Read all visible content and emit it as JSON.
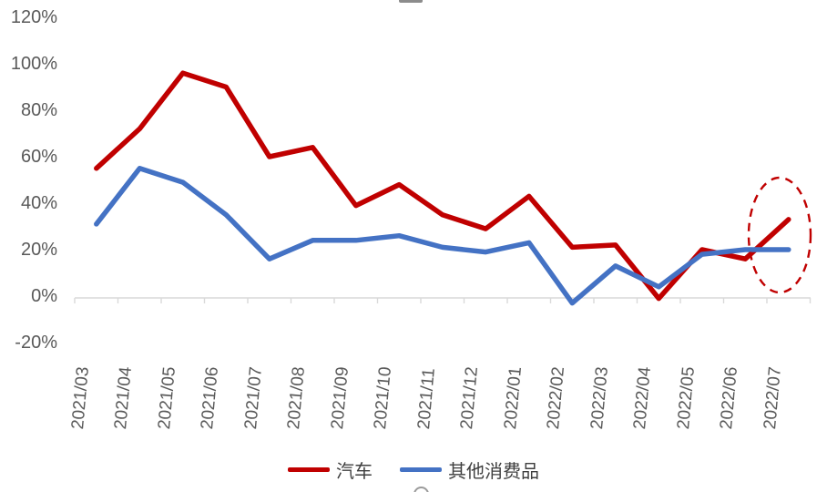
{
  "chart_data": {
    "type": "line",
    "categories": [
      "2021/03",
      "2021/04",
      "2021/05",
      "2021/06",
      "2021/07",
      "2021/08",
      "2021/09",
      "2021/10",
      "2021/11",
      "2021/12",
      "2022/01",
      "2022/02",
      "2022/03",
      "2022/04",
      "2022/05",
      "2022/06",
      "2022/07"
    ],
    "series": [
      {
        "name": "汽车",
        "color": "#C00000",
        "values": [
          55,
          72,
          96,
          90,
          60,
          64,
          39,
          48,
          35,
          29,
          43,
          21,
          22,
          -1,
          20,
          16,
          33
        ]
      },
      {
        "name": "其他消费品",
        "color": "#4472C4",
        "values": [
          31,
          55,
          49,
          35,
          16,
          24,
          24,
          26,
          21,
          19,
          23,
          -3,
          13,
          4,
          18,
          20,
          20
        ]
      }
    ],
    "y_ticks": [
      {
        "label": "120%",
        "value": 120
      },
      {
        "label": "100%",
        "value": 100
      },
      {
        "label": "80%",
        "value": 80
      },
      {
        "label": "60%",
        "value": 60
      },
      {
        "label": "40%",
        "value": 40
      },
      {
        "label": "20%",
        "value": 20
      },
      {
        "label": "0%",
        "value": 0
      },
      {
        "label": "-20%",
        "value": -20
      }
    ],
    "ylim": [
      -20,
      120
    ],
    "grid": false,
    "legend_position": "bottom",
    "annotation": {
      "type": "ellipse-highlight",
      "style": "dashed",
      "color": "#C00000",
      "target_category": "2022/07"
    }
  }
}
